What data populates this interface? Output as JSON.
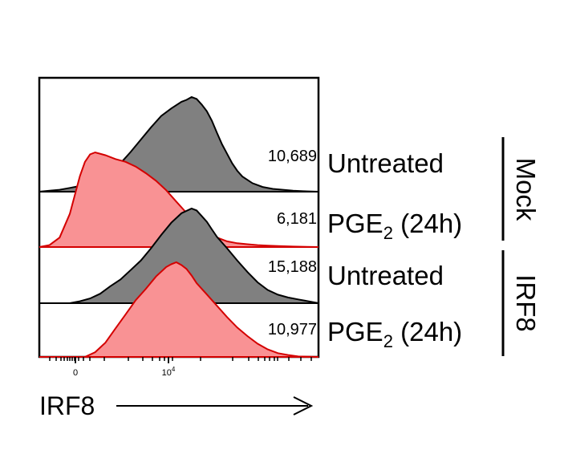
{
  "chart_data": {
    "type": "area",
    "xlabel": "IRF8",
    "x_scale": "biexponential",
    "x_ticks": [
      {
        "value": 0,
        "label": "0"
      },
      {
        "value": 10000,
        "label": "10",
        "sup": "4"
      }
    ],
    "groups": [
      {
        "name": "Mock",
        "rows": [
          0,
          1
        ]
      },
      {
        "name": "IRF8",
        "rows": [
          2,
          3
        ]
      }
    ],
    "rows": [
      {
        "label_main": "Untreated",
        "label_sub": "",
        "mfi": "10,689",
        "color": "#808080",
        "stroke": "#000000",
        "x": [
          -0.9,
          -0.7,
          -0.5,
          -0.3,
          -0.1,
          0.1,
          0.3,
          0.5,
          0.7,
          0.9,
          1.1,
          1.3,
          1.5,
          1.7,
          1.9,
          2.0,
          2.1,
          2.2,
          2.3,
          2.4,
          2.5,
          2.6,
          2.7,
          2.8,
          2.9,
          3.0,
          3.1,
          3.3,
          3.5,
          3.7,
          3.9,
          4.1,
          4.3,
          4.6
        ],
        "y": [
          0,
          0.01,
          0.02,
          0.04,
          0.06,
          0.1,
          0.15,
          0.22,
          0.3,
          0.42,
          0.55,
          0.68,
          0.8,
          0.88,
          0.95,
          0.97,
          1.0,
          0.98,
          0.92,
          0.85,
          0.75,
          0.62,
          0.5,
          0.4,
          0.3,
          0.22,
          0.16,
          0.09,
          0.05,
          0.03,
          0.02,
          0.01,
          0.005,
          0
        ]
      },
      {
        "label_main": "PGE",
        "label_sub": "2",
        "label_tail": " (24h)",
        "mfi": "6,181",
        "color": "#f99294",
        "stroke": "#d40000",
        "x": [
          -0.9,
          -0.7,
          -0.5,
          -0.3,
          -0.2,
          -0.1,
          0.0,
          0.1,
          0.2,
          0.4,
          0.6,
          0.8,
          1.0,
          1.2,
          1.4,
          1.6,
          1.8,
          2.0,
          2.2,
          2.4,
          2.6,
          2.8,
          3.0,
          3.2,
          3.4,
          3.6,
          3.8,
          4.1,
          4.6
        ],
        "y": [
          0,
          0.02,
          0.1,
          0.35,
          0.55,
          0.75,
          0.9,
          0.98,
          1.0,
          0.97,
          0.93,
          0.9,
          0.85,
          0.78,
          0.7,
          0.6,
          0.48,
          0.36,
          0.25,
          0.16,
          0.1,
          0.06,
          0.04,
          0.03,
          0.02,
          0.015,
          0.01,
          0.005,
          0
        ]
      },
      {
        "label_main": "Untreated",
        "label_sub": "",
        "mfi": "15,188",
        "color": "#808080",
        "stroke": "#000000",
        "x": [
          -0.3,
          -0.1,
          0.1,
          0.3,
          0.5,
          0.7,
          0.9,
          1.1,
          1.3,
          1.5,
          1.7,
          1.9,
          2.1,
          2.2,
          2.3,
          2.4,
          2.5,
          2.6,
          2.8,
          3.0,
          3.2,
          3.4,
          3.6,
          3.8,
          4.0,
          4.2,
          4.4,
          4.6
        ],
        "y": [
          0,
          0.02,
          0.05,
          0.1,
          0.18,
          0.25,
          0.35,
          0.45,
          0.58,
          0.72,
          0.85,
          0.95,
          1.0,
          0.98,
          0.92,
          0.86,
          0.78,
          0.7,
          0.58,
          0.45,
          0.33,
          0.22,
          0.14,
          0.09,
          0.06,
          0.04,
          0.02,
          0
        ]
      },
      {
        "label_main": "PGE",
        "label_sub": "2",
        "label_tail": " (24h)",
        "mfi": "10,977",
        "color": "#f99294",
        "stroke": "#d40000",
        "x": [
          -0.9,
          0.0,
          0.2,
          0.4,
          0.6,
          0.8,
          1.0,
          1.2,
          1.4,
          1.6,
          1.7,
          1.8,
          1.9,
          2.0,
          2.1,
          2.2,
          2.4,
          2.6,
          2.8,
          3.0,
          3.2,
          3.4,
          3.6,
          3.8,
          4.0,
          4.2,
          4.6
        ],
        "y": [
          0,
          0,
          0.05,
          0.15,
          0.3,
          0.45,
          0.6,
          0.72,
          0.85,
          0.95,
          0.98,
          1.0,
          0.97,
          0.93,
          0.86,
          0.78,
          0.66,
          0.54,
          0.42,
          0.31,
          0.22,
          0.14,
          0.08,
          0.04,
          0.02,
          0.005,
          0
        ]
      }
    ]
  }
}
